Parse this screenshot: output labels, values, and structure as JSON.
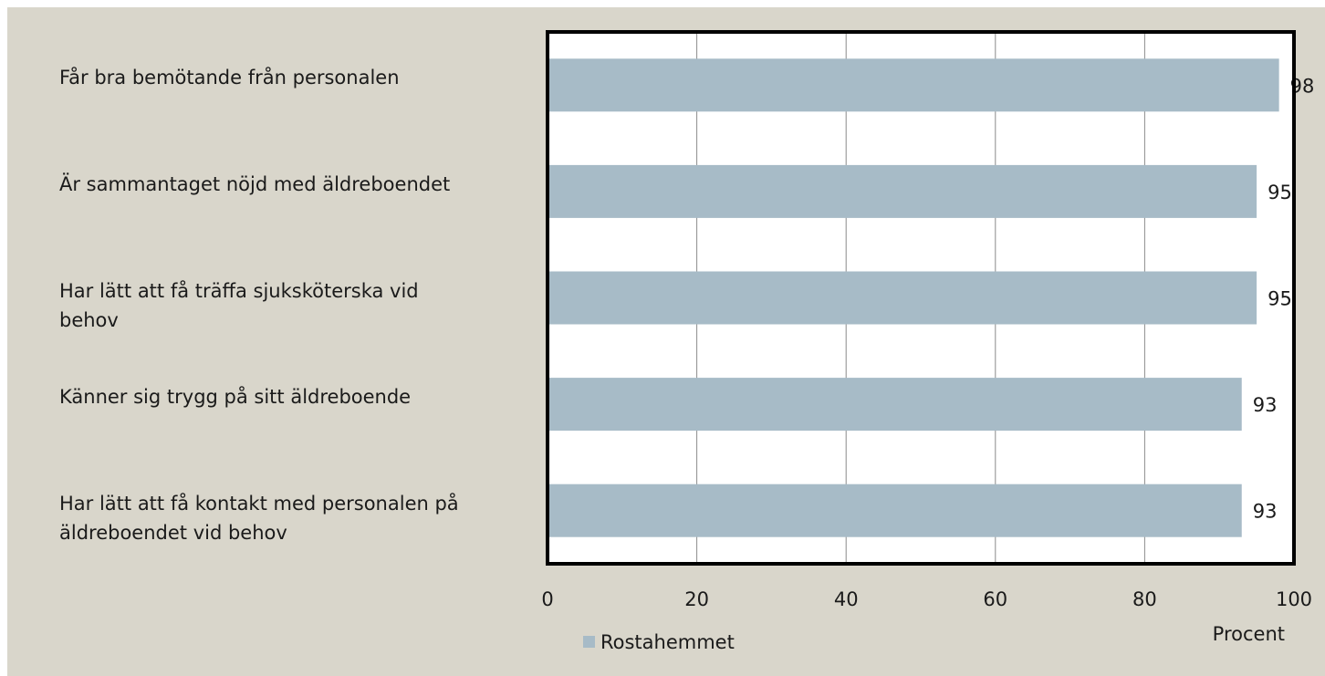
{
  "chart_data": {
    "type": "bar",
    "orientation": "horizontal",
    "categories": [
      "Får bra bemötande från personalen",
      "Är sammantaget nöjd med äldreboendet",
      "Har lätt att få träffa sjuksköterska vid behov",
      "Känner sig trygg på sitt äldreboende",
      "Har lätt att få kontakt med personalen på äldreboendet vid behov"
    ],
    "series": [
      {
        "name": "Rostahemmet",
        "color": "#a7bbc7",
        "values": [
          98,
          95,
          95,
          93,
          93
        ]
      }
    ],
    "xlim": [
      0,
      100
    ],
    "xticks": [
      0,
      20,
      40,
      60,
      80,
      100
    ],
    "grid": true,
    "x_label": "Procent",
    "legend": "bottom"
  }
}
